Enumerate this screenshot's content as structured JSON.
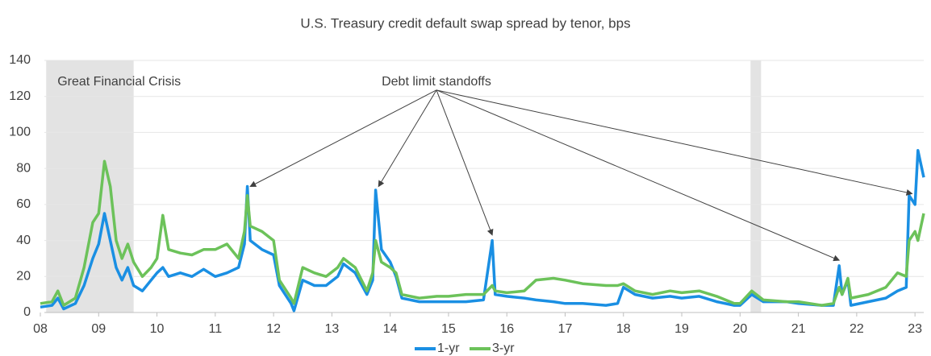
{
  "chart_data": {
    "type": "line",
    "title": "U.S. Treasury credit default swap spread by tenor, bps",
    "x": [
      2008.0,
      2008.2,
      2008.3,
      2008.4,
      2008.6,
      2008.75,
      2008.9,
      2009.0,
      2009.1,
      2009.2,
      2009.3,
      2009.4,
      2009.5,
      2009.6,
      2009.75,
      2009.9,
      2010.0,
      2010.1,
      2010.2,
      2010.4,
      2010.6,
      2010.8,
      2011.0,
      2011.2,
      2011.4,
      2011.5,
      2011.55,
      2011.6,
      2011.8,
      2012.0,
      2012.1,
      2012.3,
      2012.35,
      2012.5,
      2012.7,
      2012.9,
      2013.1,
      2013.2,
      2013.4,
      2013.6,
      2013.7,
      2013.75,
      2013.85,
      2014.0,
      2014.1,
      2014.2,
      2014.5,
      2014.8,
      2015.0,
      2015.3,
      2015.6,
      2015.75,
      2015.8,
      2016.0,
      2016.3,
      2016.5,
      2016.8,
      2017.0,
      2017.3,
      2017.7,
      2017.9,
      2018.0,
      2018.2,
      2018.5,
      2018.8,
      2019.0,
      2019.3,
      2019.6,
      2019.9,
      2020.0,
      2020.2,
      2020.4,
      2020.8,
      2021.0,
      2021.4,
      2021.6,
      2021.7,
      2021.75,
      2021.85,
      2021.9,
      2022.2,
      2022.5,
      2022.7,
      2022.85,
      2022.9,
      2023.0,
      2023.05,
      2023.15
    ],
    "series": [
      {
        "name": "1-yr",
        "color": "#1a8fe3",
        "values": [
          3,
          4,
          8,
          2,
          5,
          15,
          30,
          38,
          55,
          40,
          25,
          18,
          25,
          15,
          12,
          18,
          22,
          25,
          20,
          22,
          20,
          24,
          20,
          22,
          25,
          38,
          70,
          40,
          35,
          32,
          15,
          5,
          1,
          18,
          15,
          15,
          20,
          27,
          22,
          10,
          18,
          68,
          35,
          28,
          20,
          8,
          6,
          6,
          6,
          6,
          7,
          40,
          10,
          9,
          8,
          7,
          6,
          5,
          5,
          4,
          5,
          14,
          10,
          8,
          9,
          8,
          9,
          6,
          4,
          4,
          10,
          6,
          6,
          5,
          4,
          4,
          26,
          10,
          18,
          4,
          6,
          8,
          12,
          14,
          65,
          60,
          90,
          75
        ]
      },
      {
        "name": "3-yr",
        "color": "#6cc25a",
        "values": [
          5,
          6,
          12,
          4,
          8,
          25,
          50,
          55,
          84,
          70,
          40,
          30,
          38,
          28,
          20,
          25,
          30,
          54,
          35,
          33,
          32,
          35,
          35,
          38,
          30,
          45,
          65,
          48,
          45,
          40,
          18,
          8,
          5,
          25,
          22,
          20,
          25,
          30,
          25,
          12,
          22,
          40,
          28,
          25,
          22,
          10,
          8,
          9,
          9,
          10,
          10,
          15,
          12,
          11,
          12,
          18,
          19,
          18,
          16,
          15,
          15,
          16,
          12,
          10,
          12,
          11,
          12,
          9,
          5,
          5,
          12,
          7,
          6,
          6,
          4,
          5,
          14,
          10,
          19,
          8,
          10,
          14,
          22,
          20,
          40,
          45,
          40,
          55
        ]
      }
    ],
    "xlim": [
      2008,
      2023.15
    ],
    "xticks": [
      {
        "value": 2008,
        "label": "08"
      },
      {
        "value": 2009,
        "label": "09"
      },
      {
        "value": 2010,
        "label": "10"
      },
      {
        "value": 2011,
        "label": "11"
      },
      {
        "value": 2012,
        "label": "12"
      },
      {
        "value": 2013,
        "label": "13"
      },
      {
        "value": 2014,
        "label": "14"
      },
      {
        "value": 2015,
        "label": "15"
      },
      {
        "value": 2016,
        "label": "16"
      },
      {
        "value": 2017,
        "label": "17"
      },
      {
        "value": 2018,
        "label": "18"
      },
      {
        "value": 2019,
        "label": "19"
      },
      {
        "value": 2020,
        "label": "20"
      },
      {
        "value": 2021,
        "label": "21"
      },
      {
        "value": 2022,
        "label": "22"
      },
      {
        "value": 2023,
        "label": "23"
      }
    ],
    "ylim": [
      0,
      140
    ],
    "yticks": [
      0,
      20,
      40,
      60,
      80,
      100,
      120,
      140
    ],
    "grid": true,
    "legend": "bottom",
    "shaded_regions": [
      {
        "start": 2008.1,
        "end": 2009.6,
        "label": "Great Financial  Crisis"
      },
      {
        "start": 2020.18,
        "end": 2020.36
      }
    ],
    "annotation": {
      "text": "Debt limit standoffs",
      "x": 2015.9,
      "y": 128,
      "arrow_targets": [
        [
          2011.6,
          70
        ],
        [
          2013.8,
          70
        ],
        [
          2015.75,
          43
        ],
        [
          2021.7,
          29
        ],
        [
          2022.95,
          66
        ]
      ]
    }
  }
}
